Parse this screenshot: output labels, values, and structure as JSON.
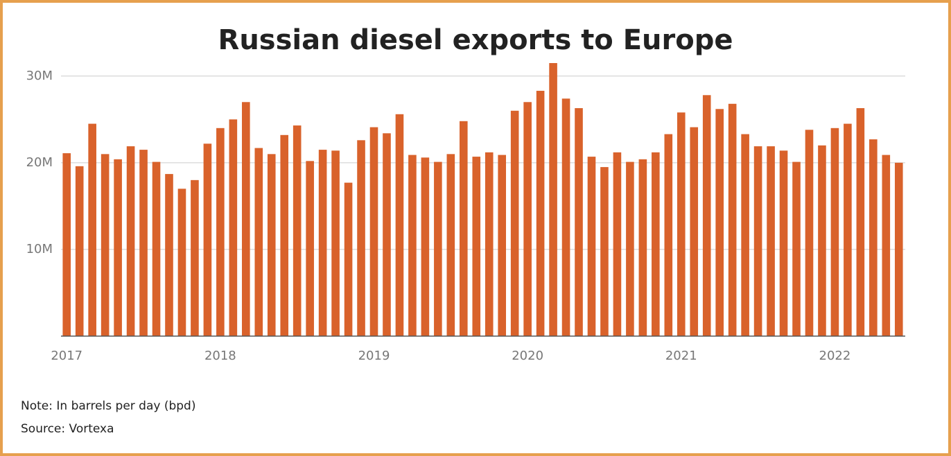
{
  "chart_data": {
    "type": "bar",
    "title": "Russian diesel exports to Europe",
    "note": "Note: In barrels per day (bpd)",
    "source": "Source: Vortexa",
    "categories": [
      "2017",
      null,
      null,
      null,
      null,
      null,
      null,
      null,
      null,
      null,
      null,
      null,
      "2018",
      null,
      null,
      null,
      null,
      null,
      null,
      null,
      null,
      null,
      null,
      null,
      "2019",
      null,
      null,
      null,
      null,
      null,
      null,
      null,
      null,
      null,
      null,
      null,
      "2020",
      null,
      null,
      null,
      null,
      null,
      null,
      null,
      null,
      null,
      null,
      null,
      "2021",
      null,
      null,
      null,
      null,
      null,
      null,
      null,
      null,
      null,
      null,
      null,
      "2022",
      null,
      null,
      null,
      null,
      null
    ],
    "values": [
      21100000,
      19600000,
      24500000,
      21000000,
      20400000,
      21900000,
      21500000,
      20100000,
      18700000,
      17000000,
      18000000,
      22200000,
      24000000,
      25000000,
      27000000,
      21700000,
      21000000,
      23200000,
      24300000,
      20200000,
      21500000,
      21400000,
      17700000,
      22600000,
      24100000,
      23400000,
      25600000,
      20900000,
      20600000,
      20100000,
      21000000,
      24800000,
      20700000,
      21200000,
      20900000,
      26000000,
      27000000,
      28300000,
      31500000,
      27400000,
      26300000,
      20700000,
      19500000,
      21200000,
      20100000,
      20400000,
      21200000,
      23300000,
      25800000,
      24100000,
      27800000,
      26200000,
      26800000,
      23300000,
      21900000,
      21900000,
      21400000,
      20100000,
      23800000,
      22000000,
      24000000,
      24500000,
      26300000,
      22700000,
      20900000,
      20000000
    ],
    "color": "#d9622b",
    "ylim": [
      0,
      31500000
    ],
    "yticks": [
      {
        "value": 10000000,
        "label": "10M"
      },
      {
        "value": 20000000,
        "label": "20M"
      },
      {
        "value": 30000000,
        "label": "30M"
      }
    ],
    "grid": true
  }
}
